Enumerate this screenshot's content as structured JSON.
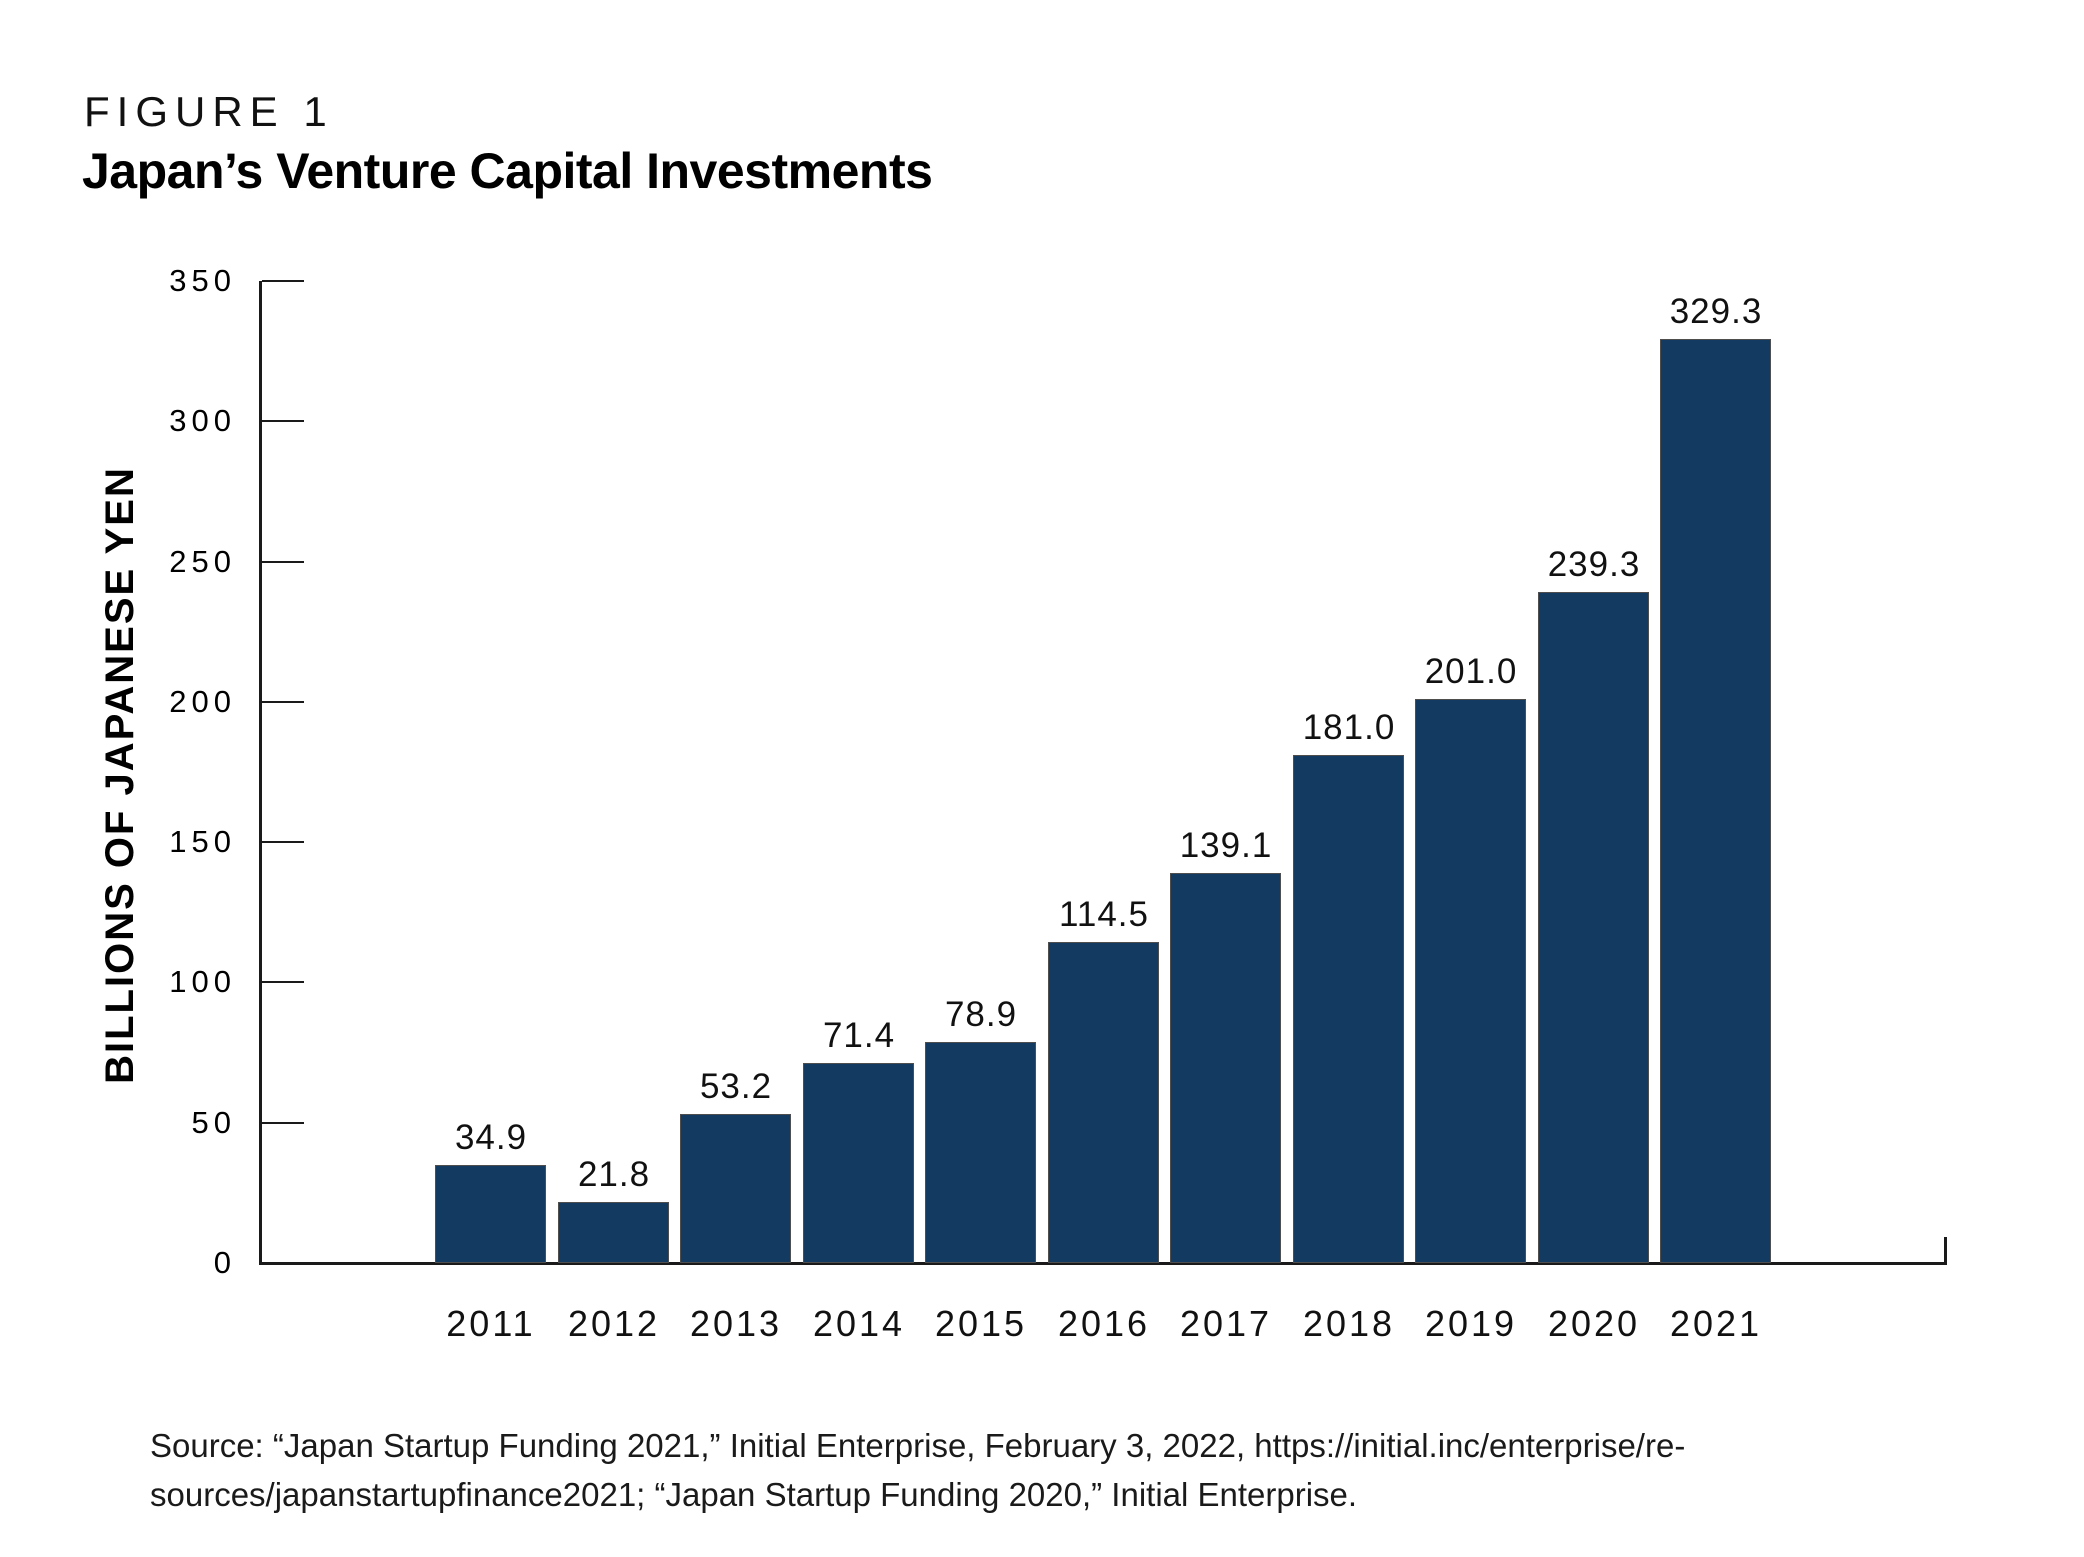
{
  "figure": {
    "label": "FIGURE 1",
    "title": "Japan’s Venture Capital Investments"
  },
  "chart_data": {
    "type": "bar",
    "title": "Japan’s Venture Capital Investments",
    "categories": [
      "2011",
      "2012",
      "2013",
      "2014",
      "2015",
      "2016",
      "2017",
      "2018",
      "2019",
      "2020",
      "2021"
    ],
    "values": [
      34.9,
      21.8,
      53.2,
      71.4,
      78.9,
      114.5,
      139.1,
      181.0,
      201.0,
      239.3,
      329.3
    ],
    "value_labels": [
      "34.9",
      "21.8",
      "53.2",
      "71.4",
      "78.9",
      "114.5",
      "139.1",
      "181.0",
      "201.0",
      "239.3",
      "329.3"
    ],
    "xlabel": "",
    "ylabel": "BILLIONS OF JAPANESE YEN",
    "ylim": [
      0,
      350
    ],
    "yticks": [
      0,
      50,
      100,
      150,
      200,
      250,
      300,
      350
    ],
    "grid": false,
    "legend": "none",
    "bar_color": "#133A60"
  },
  "source": {
    "lines": [
      "Source: “Japan Startup Funding 2021,” Initial Enterprise, February 3, 2022, https://initial.inc/enterprise/re-",
      "sources/japanstartupfinance2021; “Japan Startup Funding 2020,” Initial Enterprise."
    ]
  },
  "colors": {
    "bar": "#133A60",
    "bar_border": "#4e4e4e",
    "axis": "#1a1a1a",
    "text": "#000000"
  }
}
